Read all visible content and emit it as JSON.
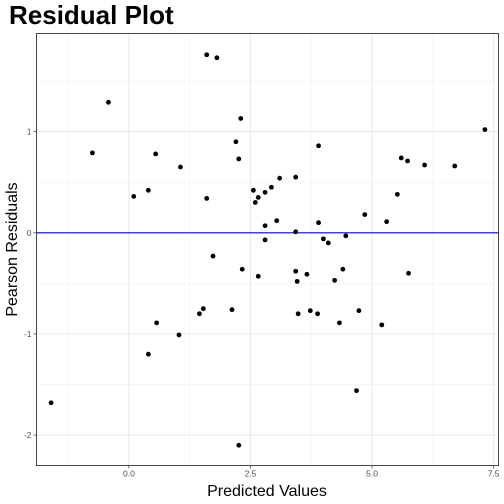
{
  "chart_data": {
    "type": "scatter",
    "title": "Residual Plot",
    "xlabel": "Predicted Values",
    "ylabel": "Pearson Residuals",
    "xlim": [
      -1.9,
      7.6
    ],
    "ylim": [
      -2.3,
      1.97
    ],
    "xticks": [
      0.0,
      2.5,
      5.0,
      7.5
    ],
    "xtick_labels": [
      "0.0",
      "2.5",
      "5.0",
      "7.5"
    ],
    "yticks": [
      -2,
      -1,
      0,
      1
    ],
    "ytick_labels": [
      "-2",
      "-1",
      "0",
      "1"
    ],
    "grid": true,
    "reference_line": {
      "y": 0,
      "color": "#0000ff"
    },
    "point_color": "#000000",
    "points": [
      {
        "x": -1.6,
        "y": -1.68
      },
      {
        "x": -0.75,
        "y": 0.79
      },
      {
        "x": -0.42,
        "y": 1.29
      },
      {
        "x": 0.1,
        "y": 0.36
      },
      {
        "x": 0.4,
        "y": 0.42
      },
      {
        "x": 0.55,
        "y": 0.78
      },
      {
        "x": 0.4,
        "y": -1.2
      },
      {
        "x": 0.57,
        "y": -0.89
      },
      {
        "x": 1.03,
        "y": -1.01
      },
      {
        "x": 1.06,
        "y": 0.65
      },
      {
        "x": 1.45,
        "y": -0.8
      },
      {
        "x": 1.53,
        "y": -0.75
      },
      {
        "x": 1.6,
        "y": 0.34
      },
      {
        "x": 1.6,
        "y": 1.76
      },
      {
        "x": 1.81,
        "y": 1.73
      },
      {
        "x": 1.73,
        "y": -0.23
      },
      {
        "x": 2.12,
        "y": -0.76
      },
      {
        "x": 2.2,
        "y": 0.9
      },
      {
        "x": 2.26,
        "y": 0.73
      },
      {
        "x": 2.3,
        "y": 1.13
      },
      {
        "x": 2.33,
        "y": -0.36
      },
      {
        "x": 2.26,
        "y": -2.1
      },
      {
        "x": 2.56,
        "y": 0.42
      },
      {
        "x": 2.6,
        "y": 0.3
      },
      {
        "x": 2.66,
        "y": 0.35
      },
      {
        "x": 2.66,
        "y": -0.43
      },
      {
        "x": 2.8,
        "y": 0.07
      },
      {
        "x": 2.8,
        "y": 0.4
      },
      {
        "x": 2.8,
        "y": -0.07
      },
      {
        "x": 2.93,
        "y": 0.45
      },
      {
        "x": 3.04,
        "y": 0.12
      },
      {
        "x": 3.1,
        "y": 0.54
      },
      {
        "x": 3.43,
        "y": 0.01
      },
      {
        "x": 3.43,
        "y": 0.55
      },
      {
        "x": 3.43,
        "y": -0.38
      },
      {
        "x": 3.46,
        "y": -0.48
      },
      {
        "x": 3.48,
        "y": -0.8
      },
      {
        "x": 3.66,
        "y": -0.41
      },
      {
        "x": 3.73,
        "y": -0.77
      },
      {
        "x": 3.88,
        "y": -0.8
      },
      {
        "x": 3.9,
        "y": 0.86
      },
      {
        "x": 3.9,
        "y": 0.1
      },
      {
        "x": 4.0,
        "y": -0.06
      },
      {
        "x": 4.1,
        "y": -0.1
      },
      {
        "x": 4.23,
        "y": -0.47
      },
      {
        "x": 4.33,
        "y": -0.89
      },
      {
        "x": 4.4,
        "y": -0.36
      },
      {
        "x": 4.46,
        "y": -0.03
      },
      {
        "x": 4.68,
        "y": -1.56
      },
      {
        "x": 4.73,
        "y": -0.77
      },
      {
        "x": 4.85,
        "y": 0.18
      },
      {
        "x": 5.2,
        "y": -0.91
      },
      {
        "x": 5.3,
        "y": 0.11
      },
      {
        "x": 5.52,
        "y": 0.38
      },
      {
        "x": 5.6,
        "y": 0.74
      },
      {
        "x": 5.73,
        "y": 0.71
      },
      {
        "x": 5.75,
        "y": -0.4
      },
      {
        "x": 6.08,
        "y": 0.67
      },
      {
        "x": 6.7,
        "y": 0.66
      },
      {
        "x": 7.32,
        "y": 1.02
      }
    ]
  }
}
